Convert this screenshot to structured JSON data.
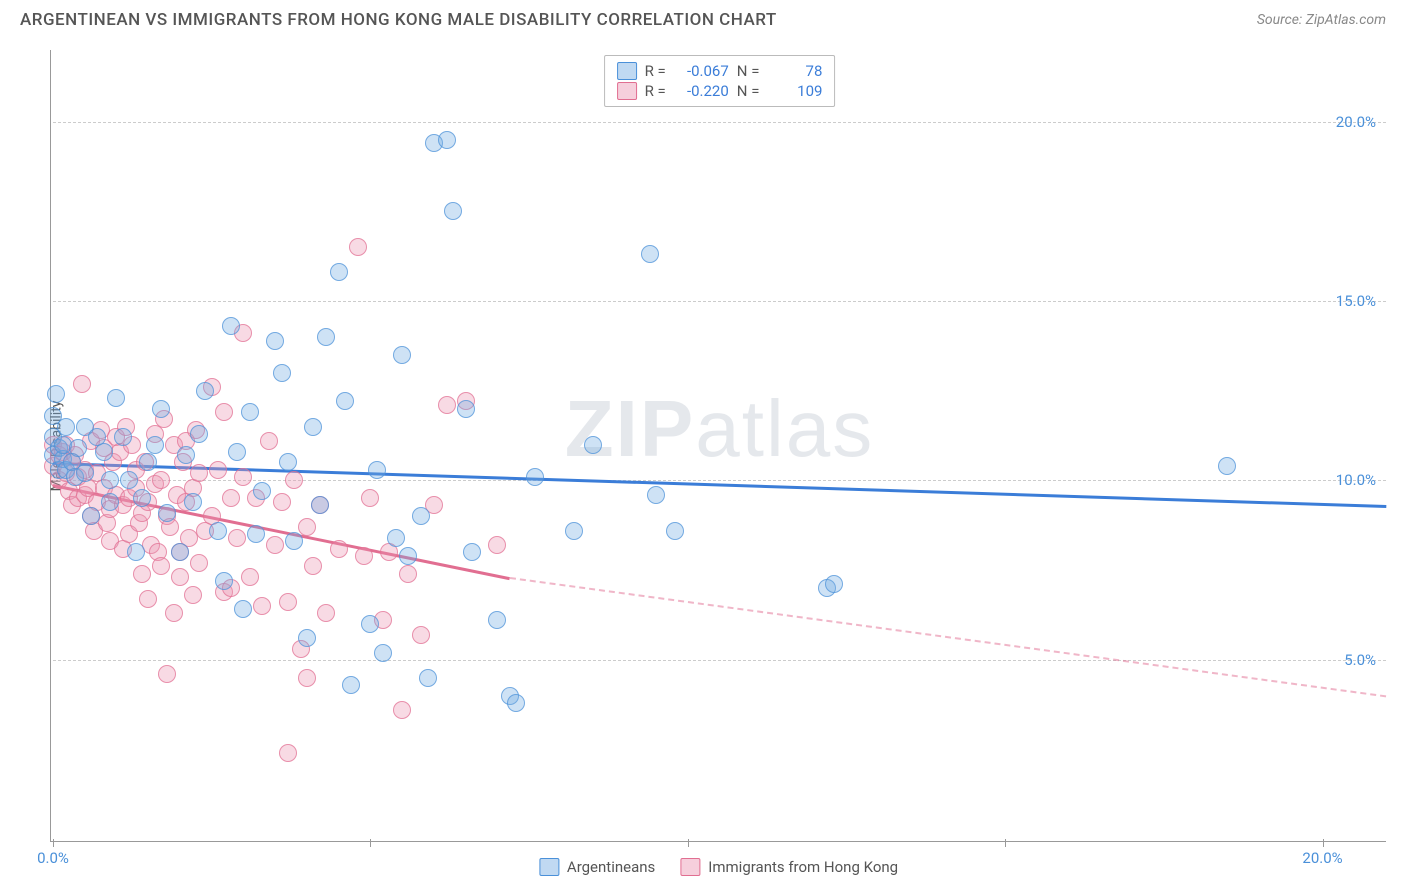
{
  "header": {
    "title": "ARGENTINEAN VS IMMIGRANTS FROM HONG KONG MALE DISABILITY CORRELATION CHART",
    "source": "Source: ZipAtlas.com"
  },
  "watermark": {
    "prefix": "ZIP",
    "suffix": "atlas"
  },
  "chart": {
    "type": "scatter",
    "y_axis_label": "Male Disability",
    "background_color": "#ffffff",
    "grid_color": "#cccccc",
    "axis_color": "#999999",
    "xlim": [
      0,
      21
    ],
    "ylim": [
      0,
      22
    ],
    "y_ticks": [
      {
        "value": 5,
        "label": "5.0%"
      },
      {
        "value": 10,
        "label": "10.0%"
      },
      {
        "value": 15,
        "label": "15.0%"
      },
      {
        "value": 20,
        "label": "20.0%"
      }
    ],
    "x_ticks": [
      {
        "value": 0,
        "label": "0.0%"
      },
      {
        "value": 20,
        "label": "20.0%"
      }
    ],
    "x_tick_marks": [
      0,
      5,
      10,
      15,
      20
    ],
    "marker_radius": 9,
    "series": {
      "argentineans": {
        "label": "Argentineans",
        "color_fill": "rgba(116,171,226,0.35)",
        "color_stroke": "#4a90d9",
        "correlation_r": "-0.067",
        "correlation_n": "78",
        "trend": {
          "x1": 0,
          "y1": 10.5,
          "x2": 21,
          "y2": 9.3,
          "color": "#3b7dd8"
        },
        "points": [
          [
            0.0,
            11.2
          ],
          [
            0.0,
            11.8
          ],
          [
            0.05,
            12.4
          ],
          [
            0.0,
            10.7
          ],
          [
            0.1,
            10.3
          ],
          [
            0.1,
            10.9
          ],
          [
            0.15,
            10.6
          ],
          [
            0.15,
            11.0
          ],
          [
            0.2,
            10.3
          ],
          [
            0.2,
            11.5
          ],
          [
            0.3,
            10.5
          ],
          [
            0.35,
            10.1
          ],
          [
            0.4,
            10.9
          ],
          [
            0.5,
            11.5
          ],
          [
            0.5,
            10.2
          ],
          [
            0.6,
            9.0
          ],
          [
            0.7,
            11.2
          ],
          [
            0.8,
            10.8
          ],
          [
            0.9,
            10.0
          ],
          [
            0.9,
            9.4
          ],
          [
            1.0,
            12.3
          ],
          [
            1.1,
            11.2
          ],
          [
            1.2,
            10.0
          ],
          [
            1.3,
            8.0
          ],
          [
            1.4,
            9.5
          ],
          [
            1.5,
            10.5
          ],
          [
            1.6,
            11.0
          ],
          [
            1.7,
            12.0
          ],
          [
            1.8,
            9.1
          ],
          [
            2.0,
            8.0
          ],
          [
            2.1,
            10.7
          ],
          [
            2.2,
            9.4
          ],
          [
            2.3,
            11.3
          ],
          [
            2.4,
            12.5
          ],
          [
            2.6,
            8.6
          ],
          [
            2.7,
            7.2
          ],
          [
            2.8,
            14.3
          ],
          [
            2.9,
            10.8
          ],
          [
            3.0,
            6.4
          ],
          [
            3.1,
            11.9
          ],
          [
            3.2,
            8.5
          ],
          [
            3.3,
            9.7
          ],
          [
            3.5,
            13.9
          ],
          [
            3.6,
            13.0
          ],
          [
            3.7,
            10.5
          ],
          [
            3.8,
            8.3
          ],
          [
            4.0,
            5.6
          ],
          [
            4.1,
            11.5
          ],
          [
            4.2,
            9.3
          ],
          [
            4.3,
            14.0
          ],
          [
            4.5,
            15.8
          ],
          [
            4.6,
            12.2
          ],
          [
            4.7,
            4.3
          ],
          [
            5.0,
            6.0
          ],
          [
            5.1,
            10.3
          ],
          [
            5.2,
            5.2
          ],
          [
            5.4,
            8.4
          ],
          [
            5.5,
            13.5
          ],
          [
            5.6,
            7.9
          ],
          [
            5.8,
            9.0
          ],
          [
            5.9,
            4.5
          ],
          [
            6.0,
            19.4
          ],
          [
            6.2,
            19.5
          ],
          [
            6.3,
            17.5
          ],
          [
            6.5,
            12.0
          ],
          [
            6.6,
            8.0
          ],
          [
            7.0,
            6.1
          ],
          [
            7.2,
            4.0
          ],
          [
            7.3,
            3.8
          ],
          [
            7.6,
            10.1
          ],
          [
            8.2,
            8.6
          ],
          [
            8.5,
            11.0
          ],
          [
            9.4,
            16.3
          ],
          [
            9.5,
            9.6
          ],
          [
            9.8,
            8.6
          ],
          [
            12.2,
            7.0
          ],
          [
            12.3,
            7.1
          ],
          [
            18.5,
            10.4
          ]
        ]
      },
      "hongkong": {
        "label": "Immigrants from Hong Kong",
        "color_fill": "rgba(236,149,177,0.35)",
        "color_stroke": "#e16e91",
        "correlation_r": "-0.220",
        "correlation_n": "109",
        "trend": {
          "x1": 0,
          "y1": 9.9,
          "x2": 7.2,
          "y2": 7.3,
          "color": "#e16e91"
        },
        "trend_dash": {
          "x1": 7.2,
          "y1": 7.3,
          "x2": 21,
          "y2": 4.0
        },
        "points": [
          [
            0.0,
            10.4
          ],
          [
            0.0,
            11.0
          ],
          [
            0.1,
            10.7
          ],
          [
            0.1,
            10.0
          ],
          [
            0.15,
            10.8
          ],
          [
            0.2,
            11.0
          ],
          [
            0.2,
            10.2
          ],
          [
            0.25,
            9.7
          ],
          [
            0.3,
            10.5
          ],
          [
            0.3,
            9.3
          ],
          [
            0.35,
            10.7
          ],
          [
            0.4,
            9.5
          ],
          [
            0.4,
            10.1
          ],
          [
            0.45,
            12.7
          ],
          [
            0.5,
            10.3
          ],
          [
            0.5,
            9.6
          ],
          [
            0.55,
            9.8
          ],
          [
            0.6,
            9.0
          ],
          [
            0.6,
            11.1
          ],
          [
            0.65,
            8.6
          ],
          [
            0.7,
            10.2
          ],
          [
            0.7,
            9.4
          ],
          [
            0.75,
            11.4
          ],
          [
            0.8,
            9.8
          ],
          [
            0.8,
            10.9
          ],
          [
            0.85,
            8.8
          ],
          [
            0.9,
            9.2
          ],
          [
            0.9,
            8.3
          ],
          [
            0.95,
            10.5
          ],
          [
            1.0,
            11.2
          ],
          [
            1.0,
            9.6
          ],
          [
            1.05,
            10.8
          ],
          [
            1.1,
            8.1
          ],
          [
            1.1,
            9.3
          ],
          [
            1.15,
            11.5
          ],
          [
            1.2,
            9.5
          ],
          [
            1.2,
            8.5
          ],
          [
            1.25,
            11.0
          ],
          [
            1.3,
            9.8
          ],
          [
            1.3,
            10.3
          ],
          [
            1.35,
            8.8
          ],
          [
            1.4,
            7.4
          ],
          [
            1.4,
            9.1
          ],
          [
            1.45,
            10.5
          ],
          [
            1.5,
            6.7
          ],
          [
            1.5,
            9.4
          ],
          [
            1.55,
            8.2
          ],
          [
            1.6,
            9.9
          ],
          [
            1.6,
            11.3
          ],
          [
            1.65,
            8.0
          ],
          [
            1.7,
            10.0
          ],
          [
            1.7,
            7.6
          ],
          [
            1.75,
            11.7
          ],
          [
            1.8,
            4.6
          ],
          [
            1.8,
            9.0
          ],
          [
            1.85,
            8.7
          ],
          [
            1.9,
            11.0
          ],
          [
            1.9,
            6.3
          ],
          [
            1.95,
            9.6
          ],
          [
            2.0,
            8.0
          ],
          [
            2.0,
            7.3
          ],
          [
            2.05,
            10.5
          ],
          [
            2.1,
            9.4
          ],
          [
            2.1,
            11.1
          ],
          [
            2.15,
            8.4
          ],
          [
            2.2,
            6.8
          ],
          [
            2.2,
            9.8
          ],
          [
            2.25,
            11.4
          ],
          [
            2.3,
            7.7
          ],
          [
            2.3,
            10.2
          ],
          [
            2.4,
            8.6
          ],
          [
            2.5,
            9.0
          ],
          [
            2.5,
            12.6
          ],
          [
            2.6,
            10.3
          ],
          [
            2.7,
            6.9
          ],
          [
            2.7,
            11.9
          ],
          [
            2.8,
            9.5
          ],
          [
            2.8,
            7.0
          ],
          [
            2.9,
            8.4
          ],
          [
            3.0,
            14.1
          ],
          [
            3.0,
            10.1
          ],
          [
            3.1,
            7.3
          ],
          [
            3.2,
            9.5
          ],
          [
            3.3,
            6.5
          ],
          [
            3.4,
            11.1
          ],
          [
            3.5,
            8.2
          ],
          [
            3.6,
            9.4
          ],
          [
            3.7,
            6.6
          ],
          [
            3.7,
            2.4
          ],
          [
            3.8,
            10.0
          ],
          [
            3.9,
            5.3
          ],
          [
            4.0,
            8.7
          ],
          [
            4.0,
            4.5
          ],
          [
            4.1,
            7.6
          ],
          [
            4.2,
            9.3
          ],
          [
            4.3,
            6.3
          ],
          [
            4.5,
            8.1
          ],
          [
            4.8,
            16.5
          ],
          [
            4.9,
            7.9
          ],
          [
            5.0,
            9.5
          ],
          [
            5.2,
            6.1
          ],
          [
            5.3,
            8.0
          ],
          [
            5.5,
            3.6
          ],
          [
            5.6,
            7.4
          ],
          [
            5.8,
            5.7
          ],
          [
            6.0,
            9.3
          ],
          [
            6.2,
            12.1
          ],
          [
            6.5,
            12.2
          ],
          [
            7.0,
            8.2
          ]
        ]
      }
    },
    "stats_labels": {
      "r": "R =",
      "n": "N ="
    }
  },
  "legend": {
    "s1": "Argentineans",
    "s2": "Immigrants from Hong Kong"
  }
}
